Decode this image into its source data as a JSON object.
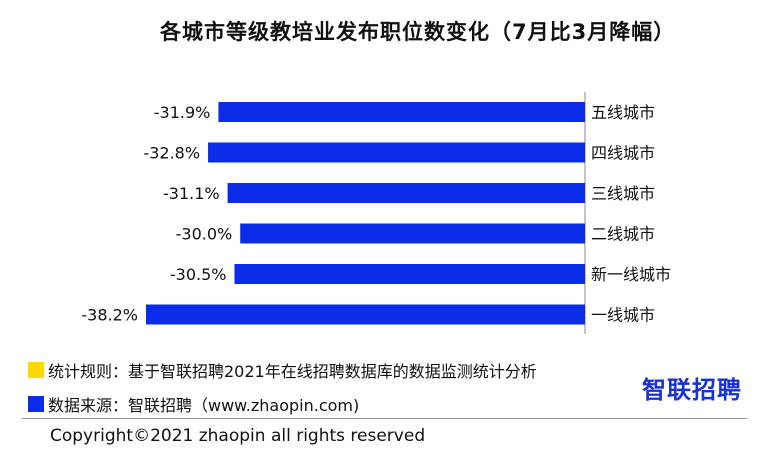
{
  "title": "各城市等级教培业发布职位数变化（7月比3月降幅）",
  "chart_data": {
    "type": "bar",
    "orientation": "horizontal",
    "categories": [
      "五线城市",
      "四线城市",
      "三线城市",
      "二线城市",
      "新一线城市",
      "一线城市"
    ],
    "values": [
      -31.9,
      -32.8,
      -31.1,
      -30.0,
      -30.5,
      -38.2
    ],
    "value_labels": [
      "-31.9%",
      "-32.8%",
      "-31.1%",
      "-30.0%",
      "-30.5%",
      "-38.2%"
    ],
    "bar_color": "#0a2be8",
    "xlim": [
      -38.2,
      0
    ]
  },
  "legend": [
    {
      "color": "#ffd700",
      "text": "统计规则：基于智联招聘2021年在线招聘数据库的数据监测统计分析"
    },
    {
      "color": "#0a2be8",
      "text": "数据来源：智联招聘（www.zhaopin.com)"
    }
  ],
  "logo_text": "智联招聘",
  "copyright": "Copyright©2021 zhaopin all rights reserved"
}
